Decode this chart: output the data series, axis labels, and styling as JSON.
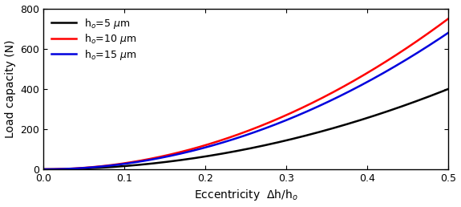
{
  "title": "",
  "xlabel": "Eccentricity  $\\Delta$h/h$_o$",
  "ylabel": "Load capacity (N)",
  "xlim": [
    0.0,
    0.5
  ],
  "ylim": [
    0,
    800
  ],
  "yticks": [
    0,
    200,
    400,
    600,
    800
  ],
  "xticks": [
    0.0,
    0.1,
    0.2,
    0.3,
    0.4,
    0.5
  ],
  "lines": [
    {
      "label": "h$_o$=5 $\\mu$m",
      "color": "#000000",
      "a": 1600,
      "b": 0.0,
      "power": 2.0
    },
    {
      "label": "h$_o$=10 $\\mu$m",
      "color": "#ff0000",
      "a": 3000,
      "b": 0.0,
      "power": 2.0
    },
    {
      "label": "h$_o$=15 $\\mu$m",
      "color": "#0000dd",
      "a": 2720,
      "b": 0.0,
      "power": 2.0
    }
  ],
  "legend_loc": "upper left",
  "linewidth": 1.8,
  "background_color": "#ffffff",
  "figure_width": 5.75,
  "figure_height": 2.58,
  "dpi": 100
}
